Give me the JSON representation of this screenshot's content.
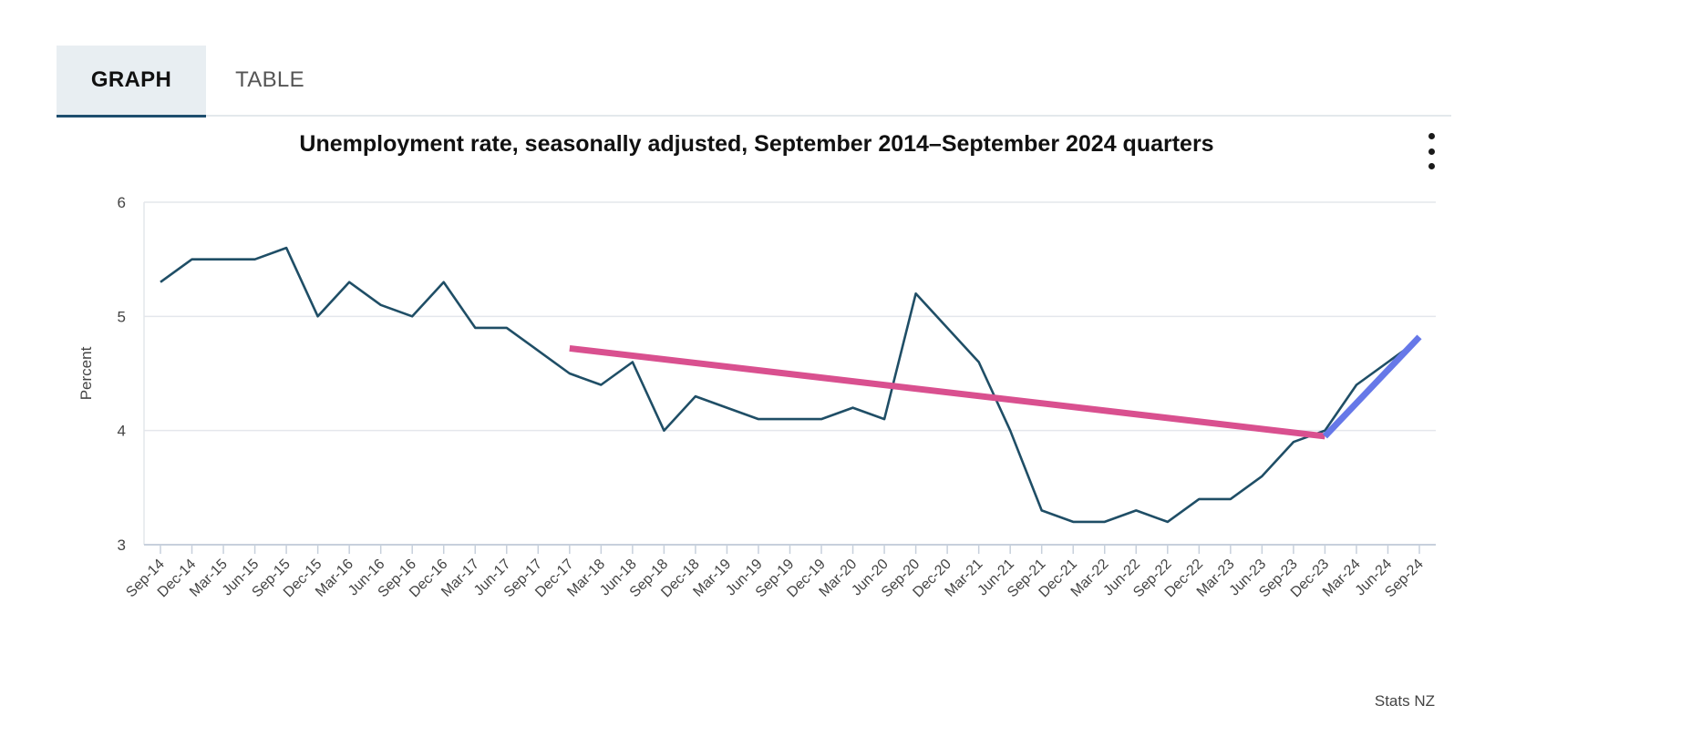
{
  "tabs": [
    {
      "label": "GRAPH",
      "active": true
    },
    {
      "label": "TABLE",
      "active": false
    }
  ],
  "chart_data": {
    "type": "line",
    "title": "Unemployment rate, seasonally adjusted, September 2014–September 2024 quarters",
    "xlabel": "",
    "ylabel": "Percent",
    "ylim": [
      3,
      6
    ],
    "yticks": [
      3,
      4,
      5,
      6
    ],
    "grid": true,
    "categories": [
      "Sep-14",
      "Dec-14",
      "Mar-15",
      "Jun-15",
      "Sep-15",
      "Dec-15",
      "Mar-16",
      "Jun-16",
      "Sep-16",
      "Dec-16",
      "Mar-17",
      "Jun-17",
      "Sep-17",
      "Dec-17",
      "Mar-18",
      "Jun-18",
      "Sep-18",
      "Dec-18",
      "Mar-19",
      "Jun-19",
      "Sep-19",
      "Dec-19",
      "Mar-20",
      "Jun-20",
      "Sep-20",
      "Dec-20",
      "Mar-21",
      "Jun-21",
      "Sep-21",
      "Dec-21",
      "Mar-22",
      "Jun-22",
      "Sep-22",
      "Dec-22",
      "Mar-23",
      "Jun-23",
      "Sep-23",
      "Dec-23",
      "Mar-24",
      "Jun-24",
      "Sep-24"
    ],
    "series": [
      {
        "name": "Unemployment rate",
        "color": "#1f4e66",
        "values": [
          5.3,
          5.5,
          5.5,
          5.5,
          5.6,
          5.0,
          5.3,
          5.1,
          5.0,
          5.3,
          4.9,
          4.9,
          4.7,
          4.5,
          4.4,
          4.6,
          4.0,
          4.3,
          4.2,
          4.1,
          4.1,
          4.1,
          4.2,
          4.1,
          5.2,
          4.9,
          4.6,
          4.0,
          3.3,
          3.2,
          3.2,
          3.3,
          3.2,
          3.4,
          3.4,
          3.6,
          3.9,
          4.0,
          4.4,
          4.6,
          4.8
        ]
      }
    ],
    "annotations": [
      {
        "name": "trend-down",
        "color": "#d9508f",
        "from": {
          "x": "Dec-17",
          "y": 4.72
        },
        "to": {
          "x": "Dec-23",
          "y": 3.95
        }
      },
      {
        "name": "trend-up",
        "color": "#6678e8",
        "from": {
          "x": "Dec-23",
          "y": 3.95
        },
        "to": {
          "x": "Sep-24",
          "y": 4.82
        }
      }
    ]
  },
  "source": "Stats NZ"
}
